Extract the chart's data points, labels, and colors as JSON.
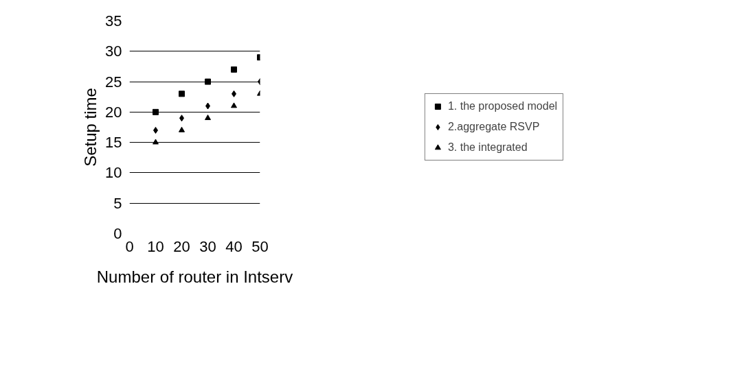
{
  "chart_data": {
    "type": "scatter",
    "xlabel": "Number of router in Intserv",
    "ylabel": "Setup time",
    "x": [
      10,
      20,
      30,
      40,
      50
    ],
    "series": [
      {
        "name": "1. the proposed model",
        "color": "#000000",
        "marker": "square",
        "values": [
          20,
          23,
          25,
          27,
          29
        ]
      },
      {
        "name": "2.aggregate RSVP",
        "color": "#000000",
        "marker": "diamond",
        "values": [
          17,
          19,
          21,
          23,
          25
        ]
      },
      {
        "name": "3. the integrated",
        "color": "#000000",
        "marker": "triangle",
        "values": [
          15,
          17,
          19,
          21,
          23
        ]
      }
    ],
    "xlim": [
      0,
      50
    ],
    "ylim": [
      0,
      35
    ],
    "xticks": [
      0,
      10,
      20,
      30,
      40,
      50
    ],
    "yticks": [
      0,
      5,
      10,
      15,
      20,
      25,
      30,
      35
    ],
    "grid": "y",
    "legend": "right"
  }
}
